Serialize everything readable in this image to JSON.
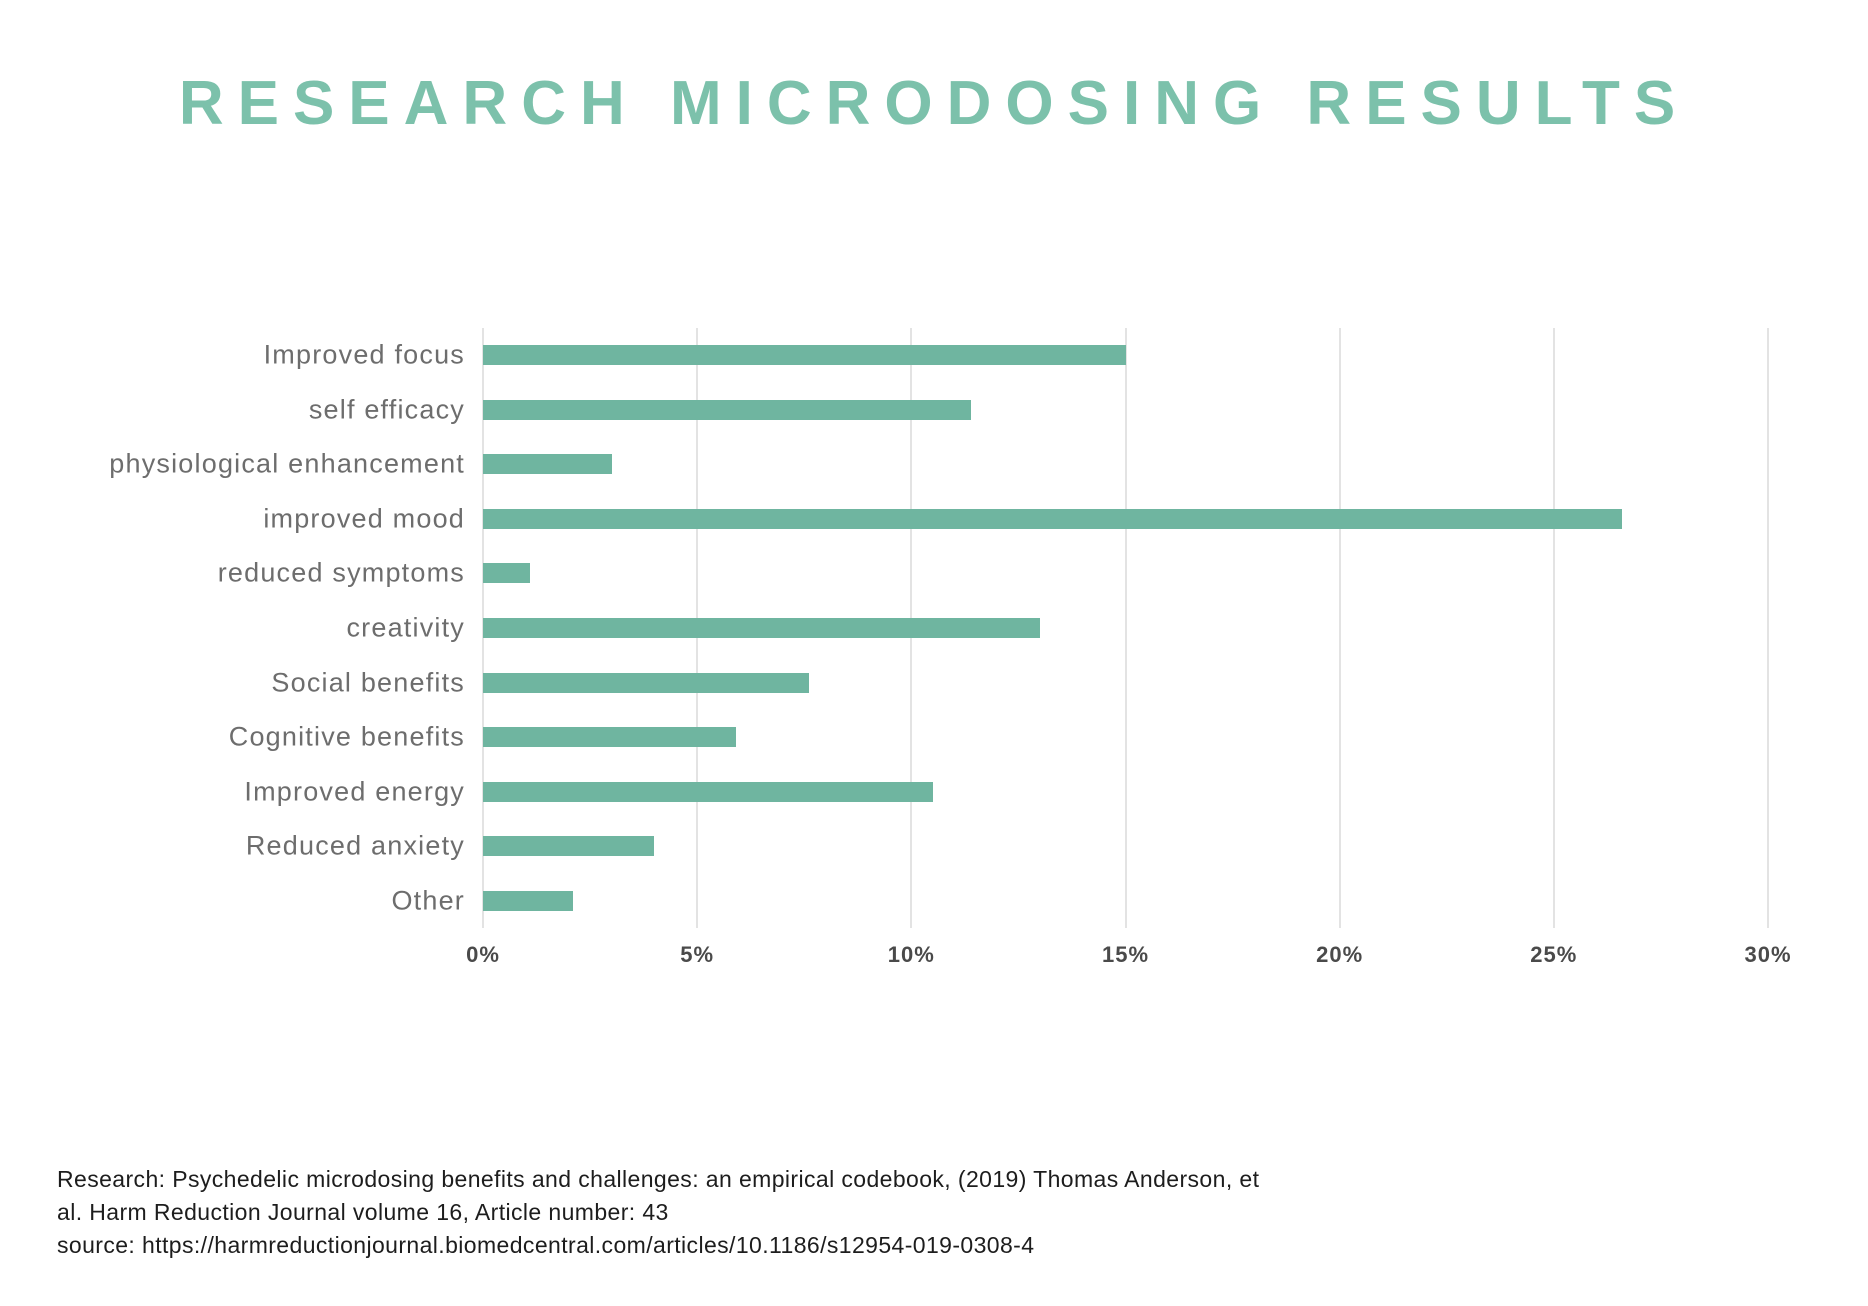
{
  "page": {
    "title": "RESEARCH MICRODOSING RESULTS",
    "footer": {
      "line1": "Research: Psychedelic microdosing benefits and challenges: an empirical codebook, (2019) Thomas Anderson, et",
      "line2": "al. Harm Reduction Journal volume 16, Article number: 43",
      "line3": "source: https://harmreductionjournal.biomedcentral.com/articles/10.1186/s12954-019-0308-4"
    }
  },
  "colors": {
    "title_green": "#7cc1ab",
    "bar_green": "#6fb5a0",
    "gridline_gray": "#e3e3e3",
    "category_label_gray": "#6d6d6d",
    "tick_label_gray": "#4a4a4a",
    "footer_text": "#1d1d1d"
  },
  "chart_data": {
    "type": "bar",
    "orientation": "horizontal",
    "title": "RESEARCH MICRODOSING RESULTS",
    "categories": [
      "Improved focus",
      "self efficacy",
      "physiological enhancement",
      "improved mood",
      "reduced symptoms",
      "creativity",
      "Social benefits",
      "Cognitive benefits",
      "Improved energy",
      "Reduced anxiety",
      "Other"
    ],
    "values": [
      15.0,
      11.4,
      3.0,
      26.6,
      1.1,
      13.0,
      7.6,
      5.9,
      10.5,
      4.0,
      2.1
    ],
    "unit": "%",
    "xlabel": "",
    "ylabel": "",
    "xlim": [
      0,
      30
    ],
    "x_ticks": [
      "0%",
      "5%",
      "10%",
      "15%",
      "20%",
      "25%",
      "30%"
    ],
    "x_tick_values": [
      0,
      5,
      10,
      15,
      20,
      25,
      30
    ],
    "grid": true,
    "legend": false
  }
}
